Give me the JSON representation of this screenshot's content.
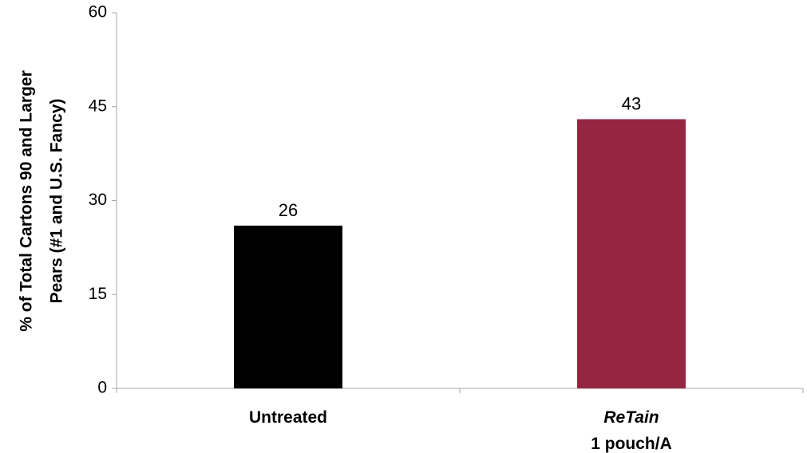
{
  "chart_data": {
    "type": "bar",
    "categories": [
      {
        "lines": [
          {
            "text": "Untreated",
            "italic": false
          }
        ]
      },
      {
        "lines": [
          {
            "text": "ReTain",
            "italic": true
          },
          {
            "text": "1 pouch/A",
            "italic": false
          }
        ]
      }
    ],
    "values": [
      26,
      43
    ],
    "data_labels": [
      "26",
      "43"
    ],
    "bar_colors": [
      "#000000",
      "#952641"
    ],
    "ylim": [
      0,
      60
    ],
    "yticks": [
      0,
      15,
      30,
      45,
      60
    ],
    "ylabel_lines": [
      "% of Total Cartons 90 and Larger",
      "Pears (#1 and U.S. Fancy)"
    ],
    "xlabel": "",
    "title": "",
    "grid": false,
    "legend": "none"
  }
}
